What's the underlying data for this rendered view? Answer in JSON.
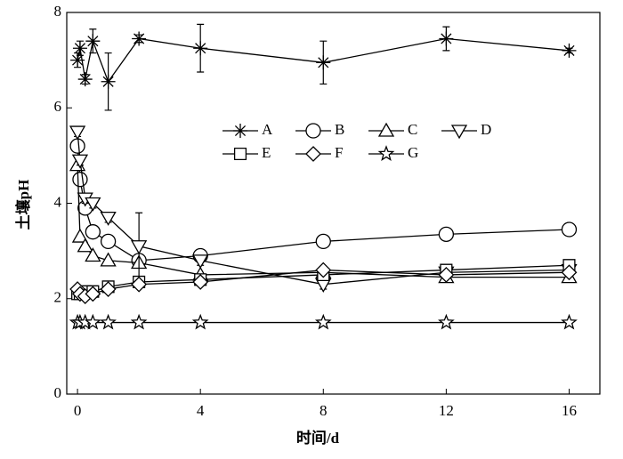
{
  "chart_data": {
    "type": "line",
    "x_label": "时间/d",
    "y_label": "土壤pH",
    "x": [
      0,
      0.083,
      0.25,
      0.5,
      1,
      2,
      4,
      8,
      12,
      16
    ],
    "xlim": [
      -0.35,
      17
    ],
    "ylim": [
      0,
      8
    ],
    "xticks": [
      0,
      4,
      8,
      12,
      16
    ],
    "yticks": [
      0,
      2,
      4,
      6,
      8
    ],
    "series": [
      {
        "name": "A",
        "marker": "asterisk",
        "color": "#000",
        "values": [
          7.0,
          7.25,
          6.6,
          7.4,
          6.55,
          7.45,
          7.25,
          6.95,
          7.45,
          7.2
        ],
        "errors": [
          0.15,
          0.15,
          0.1,
          0.25,
          0.6,
          0.08,
          0.5,
          0.45,
          0.25,
          0.05
        ]
      },
      {
        "name": "B",
        "marker": "circle",
        "color": "#000",
        "values": [
          5.2,
          4.5,
          3.9,
          3.4,
          3.2,
          2.8,
          2.9,
          3.2,
          3.35,
          3.45
        ]
      },
      {
        "name": "C",
        "marker": "triangle-up",
        "color": "#000",
        "values": [
          4.8,
          3.3,
          3.1,
          2.9,
          2.8,
          2.75,
          2.5,
          2.55,
          2.45,
          2.45
        ]
      },
      {
        "name": "D",
        "marker": "triangle-down",
        "color": "#000",
        "values": [
          5.5,
          4.9,
          4.1,
          4.0,
          3.7,
          3.1,
          2.8,
          2.3,
          2.55,
          2.6
        ],
        "errors": [
          0.1,
          0.1,
          0.1,
          0.1,
          0.1,
          0.7,
          0.1,
          0.1,
          0.1,
          0.1
        ]
      },
      {
        "name": "E",
        "marker": "square",
        "color": "#000",
        "values": [
          2.1,
          2.1,
          2.15,
          2.15,
          2.25,
          2.35,
          2.4,
          2.5,
          2.6,
          2.7
        ]
      },
      {
        "name": "F",
        "marker": "diamond",
        "color": "#000",
        "values": [
          2.2,
          2.1,
          2.05,
          2.1,
          2.2,
          2.3,
          2.35,
          2.6,
          2.5,
          2.55
        ]
      },
      {
        "name": "G",
        "marker": "star",
        "color": "#000",
        "values": [
          1.5,
          1.5,
          1.5,
          1.5,
          1.5,
          1.5,
          1.5,
          1.5,
          1.5,
          1.5
        ]
      }
    ]
  }
}
